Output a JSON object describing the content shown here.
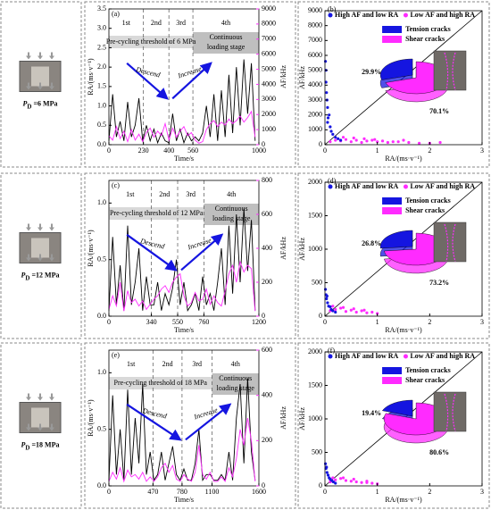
{
  "conditions": [
    {
      "symbol": "P",
      "subscript": "D",
      "text": "=6 MPa"
    },
    {
      "symbol": "P",
      "subscript": "D",
      "text": "=12 MPa"
    },
    {
      "symbol": "P",
      "subscript": "D",
      "text": "=18 MPa"
    }
  ],
  "chart_data": [
    {
      "type": "line",
      "panel_label": "(a)",
      "xlabel": "Time/s",
      "ylabel": "RA/(ms·v⁻¹)",
      "y2label": "AF/kHz",
      "stages": [
        "1st",
        "2nd",
        "3rd",
        "4th"
      ],
      "stage_boundaries": [
        230,
        400,
        560
      ],
      "threshold_label": "Pre-cycling threshold of 6 MPa",
      "loading_label": [
        "Continuous",
        "loading stage"
      ],
      "descend_label": "Descend",
      "increase_label": "Increase",
      "xlim": [
        0,
        1000
      ],
      "xticks": [
        0,
        230,
        400,
        560,
        1000
      ],
      "ylim": [
        0,
        3.5
      ],
      "yticks": [
        {
          "value": 0,
          "label": "0.0"
        },
        0.5,
        {
          "value": 1,
          "label": "1.0"
        },
        1.5,
        {
          "value": 2,
          "label": "2.0"
        },
        2.5,
        {
          "value": 3,
          "label": "3.0"
        },
        3.5
      ],
      "y2lim": [
        0,
        9000
      ],
      "y2ticks": [
        0,
        1000,
        2000,
        3000,
        4000,
        5000,
        6000,
        7000,
        8000,
        9000
      ],
      "x": [
        0,
        25,
        50,
        75,
        100,
        125,
        150,
        175,
        200,
        225,
        250,
        275,
        300,
        325,
        350,
        375,
        400,
        425,
        450,
        475,
        500,
        525,
        550,
        575,
        600,
        625,
        650,
        675,
        700,
        725,
        750,
        775,
        800,
        825,
        850,
        875,
        900,
        925,
        950,
        975
      ],
      "series": [
        {
          "color": "#000000",
          "axis": "y",
          "values": [
            0.1,
            1.3,
            0.2,
            0.6,
            0.1,
            1.1,
            0.2,
            0.5,
            1.2,
            0.1,
            0.5,
            0.1,
            0.4,
            0.05,
            0.3,
            0.1,
            0.05,
            0.8,
            0.1,
            0.4,
            0.05,
            0.3,
            0.1,
            0.2,
            0.1,
            0.3,
            1.0,
            0.2,
            1.3,
            0.1,
            1.4,
            0.2,
            1.8,
            0.3,
            2.0,
            0.5,
            2.2,
            0.8,
            2.1,
            0.1
          ]
        },
        {
          "color": "#ff2bff",
          "axis": "y2",
          "values": [
            600,
            300,
            1200,
            400,
            900,
            200,
            1000,
            300,
            700,
            200,
            800,
            1100,
            500,
            900,
            600,
            1400,
            300,
            1100,
            500,
            900,
            1200,
            600,
            800,
            300,
            100,
            200,
            1000,
            1400,
            1600,
            1200,
            1500,
            1300,
            1700,
            1400,
            1600,
            1900,
            1500,
            1800,
            2200,
            500
          ]
        }
      ]
    },
    {
      "type": "scatter",
      "panel_label": "(b)",
      "xlabel": "RA/(ms·v⁻¹)",
      "ylabel": "AF/kHz",
      "xlim": [
        0,
        3
      ],
      "xticks": [
        0,
        1,
        2,
        3
      ],
      "ylim": [
        0,
        9000
      ],
      "yticks": [
        0,
        1000,
        2000,
        3000,
        4000,
        5000,
        6000,
        7000,
        8000,
        9000
      ],
      "series": [
        {
          "name": "High AF and low RA",
          "color": "#1515e0",
          "x": [
            0.01,
            0.02,
            0.03,
            0.05,
            0.05,
            0.08,
            0.1,
            0.12,
            0.15,
            0.2,
            0.25,
            0.3,
            0.02,
            0.04,
            0.06
          ],
          "values": [
            5600,
            5000,
            3500,
            2500,
            1500,
            2000,
            1200,
            900,
            700,
            500,
            400,
            300,
            4200,
            3000,
            1800
          ]
        },
        {
          "name": "Low AF and high RA",
          "color": "#ff2bff",
          "x": [
            0.1,
            0.2,
            0.3,
            0.4,
            0.5,
            0.6,
            0.7,
            0.8,
            0.9,
            1.0,
            1.1,
            1.2,
            1.4,
            1.6,
            1.8,
            2.0,
            2.2,
            0.35,
            0.55,
            0.75,
            0.95,
            1.3,
            1.5
          ],
          "values": [
            200,
            300,
            250,
            350,
            200,
            300,
            150,
            250,
            300,
            200,
            250,
            150,
            200,
            150,
            100,
            100,
            150,
            500,
            450,
            400,
            350,
            200,
            300
          ]
        }
      ],
      "pie": {
        "labels": [
          "Tension cracks",
          "Shear cracks"
        ],
        "values": [
          29.9,
          70.1
        ],
        "value_labels": [
          "29.9%",
          "70.1%"
        ],
        "colors": [
          "#1515e0",
          "#ff2bff"
        ]
      }
    },
    {
      "type": "line",
      "panel_label": "(c)",
      "xlabel": "Time/s",
      "ylabel": "RA/(ms·v⁻¹)",
      "y2label": "AF/kHz",
      "stages": [
        "1st",
        "2nd",
        "3rd",
        "4th"
      ],
      "stage_boundaries": [
        340,
        550,
        760
      ],
      "threshold_label": "Pre-cycling threshold of 12 MPa",
      "loading_label": [
        "Continuous",
        "loading stage"
      ],
      "descend_label": "Descend",
      "increase_label": "Increase",
      "xlim": [
        0,
        1200
      ],
      "xticks": [
        0,
        340,
        550,
        760,
        1200
      ],
      "ylim": [
        0,
        1.2
      ],
      "yticks": [
        {
          "value": 0,
          "label": "0.0"
        },
        0.5,
        {
          "value": 1,
          "label": "1.0"
        }
      ],
      "y2lim": [
        0,
        800
      ],
      "y2ticks": [
        0,
        200,
        400,
        600,
        800
      ],
      "x": [
        0,
        30,
        60,
        90,
        120,
        150,
        180,
        210,
        240,
        270,
        300,
        330,
        360,
        390,
        420,
        450,
        480,
        510,
        540,
        570,
        600,
        630,
        660,
        690,
        720,
        750,
        780,
        810,
        840,
        870,
        900,
        930,
        960,
        990,
        1020,
        1050,
        1080,
        1110,
        1140,
        1170
      ],
      "series": [
        {
          "color": "#000000",
          "axis": "y",
          "values": [
            0.05,
            0.7,
            0.1,
            0.45,
            0.05,
            0.8,
            0.1,
            0.3,
            0.6,
            0.05,
            0.35,
            0.1,
            0.1,
            0.3,
            0.05,
            0.2,
            0.1,
            0.25,
            0.5,
            0.1,
            0.3,
            0.05,
            0.1,
            0.2,
            0.05,
            0.35,
            0.1,
            0.2,
            0.05,
            0.3,
            0.6,
            0.1,
            0.8,
            0.2,
            0.9,
            0.3,
            0.95,
            0.4,
            0.85,
            0.05
          ]
        },
        {
          "color": "#ff2bff",
          "axis": "y2",
          "values": [
            40,
            120,
            60,
            200,
            30,
            150,
            80,
            100,
            60,
            90,
            40,
            70,
            100,
            120,
            160,
            180,
            140,
            200,
            230,
            250,
            120,
            60,
            80,
            140,
            90,
            100,
            160,
            70,
            120,
            80,
            60,
            150,
            250,
            300,
            200,
            320,
            260,
            300,
            280,
            30
          ]
        }
      ]
    },
    {
      "type": "scatter",
      "panel_label": "(d)",
      "xlabel": "RA/(ms·v⁻¹)",
      "ylabel": "AF/kHz",
      "xlim": [
        0,
        3
      ],
      "xticks": [
        0,
        1,
        2,
        3
      ],
      "ylim": [
        0,
        2000
      ],
      "yticks": [
        0,
        500,
        1000,
        1500,
        2000
      ],
      "series": [
        {
          "name": "High AF and low RA",
          "color": "#1515e0",
          "x": [
            0.01,
            0.02,
            0.03,
            0.05,
            0.07,
            0.1,
            0.12,
            0.15,
            0.2,
            0.04
          ],
          "values": [
            400,
            320,
            260,
            200,
            150,
            140,
            100,
            80,
            60,
            300
          ]
        },
        {
          "name": "Low AF and high RA",
          "color": "#ff2bff",
          "x": [
            0.1,
            0.2,
            0.3,
            0.4,
            0.5,
            0.6,
            0.7,
            0.8,
            0.9,
            1.0,
            0.15,
            0.35,
            0.55,
            0.75
          ],
          "values": [
            80,
            100,
            120,
            70,
            90,
            60,
            80,
            50,
            60,
            40,
            150,
            130,
            110,
            90
          ]
        }
      ],
      "pie": {
        "labels": [
          "Tension cracks",
          "Shear cracks"
        ],
        "values": [
          26.8,
          73.2
        ],
        "value_labels": [
          "26.8%",
          "73.2%"
        ],
        "colors": [
          "#1515e0",
          "#ff2bff"
        ]
      }
    },
    {
      "type": "line",
      "panel_label": "(e)",
      "xlabel": "Time/s",
      "ylabel": "RA/(ms·v⁻¹)",
      "y2label": "AF/kHz",
      "stages": [
        "1st",
        "2nd",
        "3rd",
        "4th"
      ],
      "stage_boundaries": [
        470,
        780,
        1100
      ],
      "threshold_label": "Pre-cycling threshold of 18 MPa",
      "loading_label": [
        "Continuous",
        "loading stage"
      ],
      "descend_label": "Descend",
      "increase_label": "Increase",
      "xlim": [
        0,
        1600
      ],
      "xticks": [
        0,
        470,
        780,
        1100,
        1600
      ],
      "ylim": [
        0,
        1.2
      ],
      "yticks": [
        {
          "value": 0,
          "label": "0.0"
        },
        0.5,
        {
          "value": 1,
          "label": "1.0"
        }
      ],
      "y2lim": [
        0,
        600
      ],
      "y2ticks": [
        0,
        200,
        400,
        600
      ],
      "x": [
        0,
        40,
        80,
        120,
        160,
        200,
        240,
        280,
        320,
        360,
        400,
        440,
        480,
        520,
        560,
        600,
        640,
        680,
        720,
        760,
        800,
        840,
        880,
        920,
        960,
        1000,
        1040,
        1080,
        1120,
        1160,
        1200,
        1240,
        1280,
        1320,
        1360,
        1400,
        1440,
        1480,
        1520,
        1560
      ],
      "series": [
        {
          "color": "#000000",
          "axis": "y",
          "values": [
            0.05,
            0.8,
            0.1,
            0.5,
            0.05,
            0.85,
            0.1,
            0.6,
            0.2,
            0.9,
            0.1,
            0.3,
            0.05,
            0.1,
            0.3,
            0.05,
            0.2,
            0.35,
            0.1,
            0.05,
            0.15,
            0.05,
            0.05,
            0.2,
            0.5,
            0.05,
            0.1,
            0.1,
            0.05,
            0.05,
            0.1,
            0.05,
            0.3,
            0.05,
            0.6,
            0.9,
            0.2,
            0.95,
            0.3,
            0.05
          ]
        },
        {
          "color": "#ff2bff",
          "axis": "y2",
          "values": [
            20,
            60,
            30,
            80,
            20,
            70,
            40,
            50,
            30,
            60,
            20,
            40,
            20,
            40,
            80,
            100,
            60,
            90,
            30,
            20,
            50,
            30,
            20,
            60,
            180,
            50,
            30,
            60,
            20,
            20,
            40,
            20,
            80,
            40,
            120,
            250,
            180,
            300,
            200,
            20
          ]
        }
      ]
    },
    {
      "type": "scatter",
      "panel_label": "(f)",
      "xlabel": "RA/(ms·v⁻¹)",
      "ylabel": "AF/kHz",
      "xlim": [
        0,
        3
      ],
      "xticks": [
        0,
        1,
        2,
        3
      ],
      "ylim": [
        0,
        2000
      ],
      "yticks": [
        0,
        500,
        1000,
        1500,
        2000
      ],
      "series": [
        {
          "name": "High AF and low RA",
          "color": "#1515e0",
          "x": [
            0.01,
            0.02,
            0.04,
            0.06,
            0.08,
            0.1,
            0.13,
            0.16,
            0.2,
            0.03
          ],
          "values": [
            330,
            260,
            200,
            160,
            120,
            100,
            80,
            60,
            40,
            280
          ]
        },
        {
          "name": "Low AF and high RA",
          "color": "#ff2bff",
          "x": [
            0.1,
            0.2,
            0.3,
            0.4,
            0.5,
            0.6,
            0.7,
            0.8,
            0.9,
            1.0,
            0.15,
            0.35,
            0.55,
            0.8
          ],
          "values": [
            60,
            90,
            110,
            80,
            70,
            60,
            50,
            50,
            40,
            30,
            120,
            120,
            100,
            70
          ]
        }
      ],
      "pie": {
        "labels": [
          "Tension cracks",
          "Shear cracks"
        ],
        "values": [
          19.4,
          80.6
        ],
        "value_labels": [
          "19.4%",
          "80.6%"
        ],
        "colors": [
          "#1515e0",
          "#ff2bff"
        ]
      }
    }
  ]
}
